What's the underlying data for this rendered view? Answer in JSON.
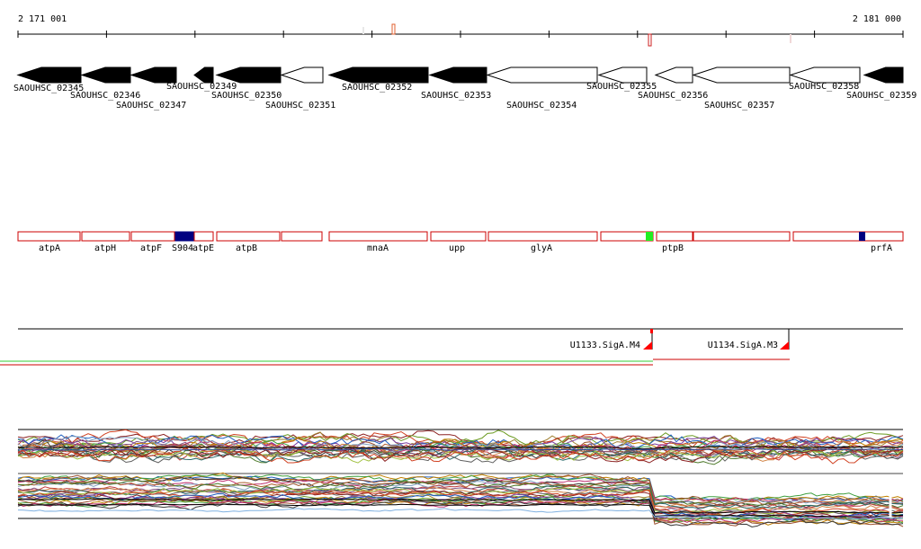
{
  "ruler": {
    "start_label": "2 171 001",
    "end_label": "2 181 000"
  },
  "genes": [
    {
      "id": "SAOUHSC_02345",
      "strand": "-",
      "filled": true
    },
    {
      "id": "SAOUHSC_02346",
      "strand": "-",
      "filled": true
    },
    {
      "id": "SAOUHSC_02347",
      "strand": "-",
      "filled": true
    },
    {
      "id": "SAOUHSC_02349",
      "strand": "-",
      "filled": true
    },
    {
      "id": "SAOUHSC_02350",
      "strand": "-",
      "filled": true
    },
    {
      "id": "SAOUHSC_02351",
      "strand": "-",
      "filled": false
    },
    {
      "id": "SAOUHSC_02352",
      "strand": "-",
      "filled": true
    },
    {
      "id": "SAOUHSC_02353",
      "strand": "-",
      "filled": true
    },
    {
      "id": "SAOUHSC_02354",
      "strand": "-",
      "filled": false
    },
    {
      "id": "SAOUHSC_02355",
      "strand": "-",
      "filled": false
    },
    {
      "id": "SAOUHSC_02356",
      "strand": "-",
      "filled": false
    },
    {
      "id": "SAOUHSC_02357",
      "strand": "-",
      "filled": false
    },
    {
      "id": "SAOUHSC_02358",
      "strand": "-",
      "filled": false
    },
    {
      "id": "SAOUHSC_02359",
      "strand": "-",
      "filled": true
    }
  ],
  "features": [
    {
      "name": "atpA"
    },
    {
      "name": "atpH"
    },
    {
      "name": "atpF"
    },
    {
      "name": "S904"
    },
    {
      "name": "atpE"
    },
    {
      "name": "atpB"
    },
    {
      "name": ""
    },
    {
      "name": "mnaA"
    },
    {
      "name": "upp"
    },
    {
      "name": "glyA"
    },
    {
      "name": ""
    },
    {
      "name": "ptpB"
    },
    {
      "name": ""
    },
    {
      "name": "prfA"
    }
  ],
  "operons": [
    {
      "name": "U1133.SigA.M4"
    },
    {
      "name": "U1134.SigA.M3"
    }
  ],
  "colors": {
    "gene_fill": "#000000",
    "feature_box": "#cc0000",
    "marker_blue": "#000080",
    "marker_green": "#22ee22",
    "promoter": "#ff0000",
    "track_green": "#33cc33",
    "track_red": "#cc0000"
  }
}
